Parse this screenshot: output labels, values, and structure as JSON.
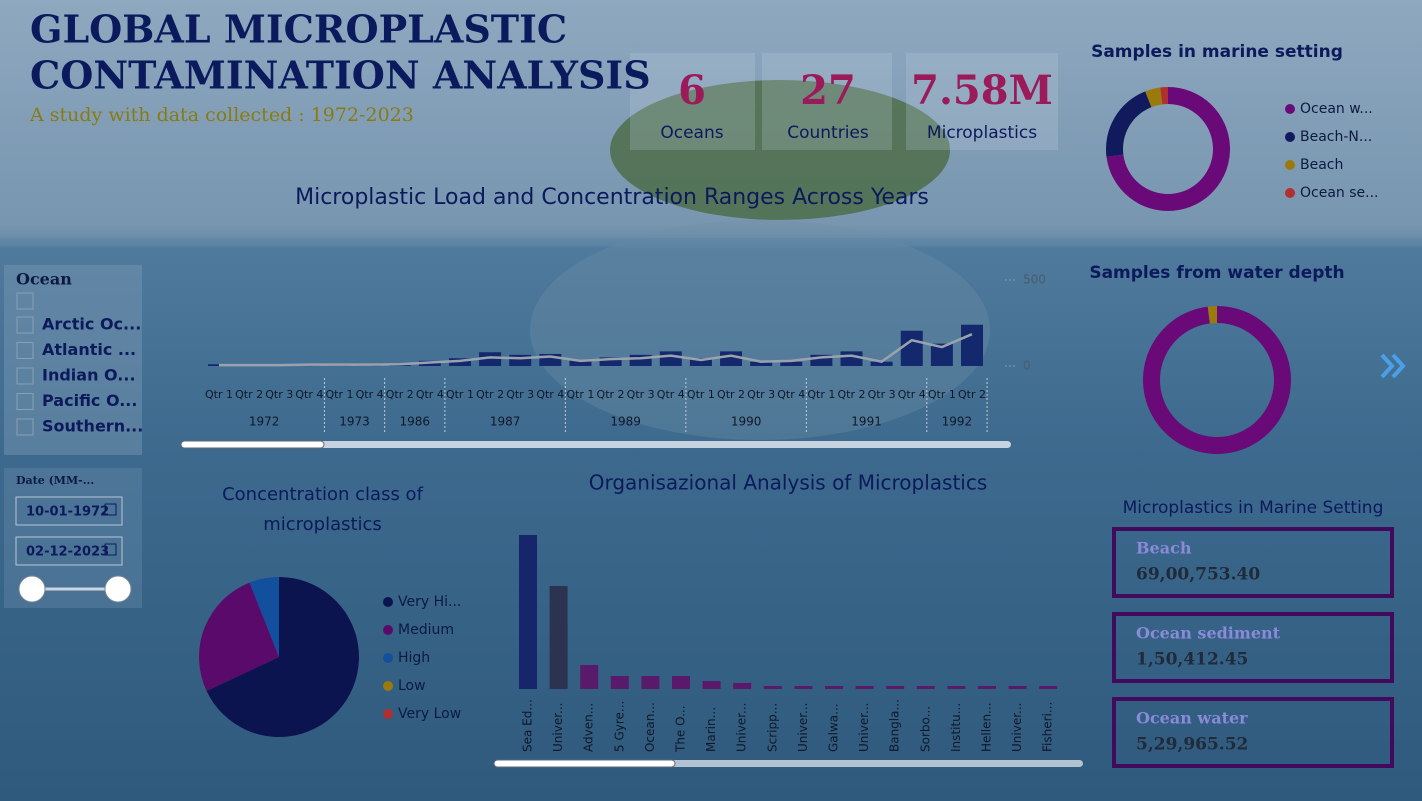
{
  "header": {
    "title_line1": "GLOBAL MICROPLASTIC",
    "title_line2": "CONTAMINATION ANALYSIS",
    "subtitle": "A study with data collected : 1972-2023"
  },
  "kpis": [
    {
      "value": "6",
      "label": "Oceans"
    },
    {
      "value": "27",
      "label": "Countries"
    },
    {
      "value": "7.58M",
      "label": "Microplastics"
    }
  ],
  "slicer": {
    "title": "Ocean",
    "items": [
      "Arctic Oc...",
      "Atlantic ...",
      "Indian O...",
      "Pacific O...",
      "Southern..."
    ]
  },
  "date_filter": {
    "title": "Date (MM-...",
    "start": "10-01-1972",
    "end": "02-12-2023"
  },
  "cards": {
    "title": "Microplastics in Marine Setting",
    "items": [
      {
        "label": "Beach",
        "value": "69,00,753.40"
      },
      {
        "label": "Ocean sediment",
        "value": "1,50,412.45"
      },
      {
        "label": "Ocean water",
        "value": "5,29,965.52"
      }
    ]
  },
  "chart_data": [
    {
      "type": "combo",
      "title": "Microplastic Load and Concentration Ranges Across Years",
      "categories": [
        "Qtr 1",
        "Qtr 2",
        "Qtr 3",
        "Qtr 4",
        "Qtr 1",
        "Qtr 4",
        "Qtr 2",
        "Qtr 4",
        "Qtr 1",
        "Qtr 2",
        "Qtr 3",
        "Qtr 4",
        "Qtr 1",
        "Qtr 2",
        "Qtr 3",
        "Qtr 4",
        "Qtr 1",
        "Qtr 2",
        "Qtr 3",
        "Qtr 4",
        "Qtr 1",
        "Qtr 2",
        "Qtr 3",
        "Qtr 4",
        "Qtr 1",
        "Qtr 2"
      ],
      "groups": [
        {
          "label": "1972",
          "size": 4
        },
        {
          "label": "1973",
          "size": 2
        },
        {
          "label": "1986",
          "size": 2
        },
        {
          "label": "1987",
          "size": 4
        },
        {
          "label": "1989",
          "size": 4
        },
        {
          "label": "1990",
          "size": 4
        },
        {
          "label": "1991",
          "size": 4
        },
        {
          "label": "1992",
          "size": 2
        }
      ],
      "series": [
        {
          "type": "bar",
          "color": "#14286e",
          "values": [
            10,
            3,
            3,
            3,
            3,
            3,
            5,
            30,
            45,
            80,
            65,
            70,
            35,
            50,
            65,
            85,
            45,
            85,
            25,
            25,
            65,
            85,
            25,
            205,
            130,
            240
          ]
        },
        {
          "type": "line",
          "color": "#9aa3ad",
          "values": [
            5,
            5,
            5,
            8,
            8,
            8,
            10,
            20,
            30,
            50,
            45,
            55,
            30,
            40,
            45,
            60,
            35,
            60,
            25,
            30,
            50,
            60,
            25,
            150,
            110,
            185
          ]
        }
      ],
      "ylim": [
        0,
        500
      ],
      "yticks": [
        0,
        500
      ]
    },
    {
      "type": "donut",
      "title": "Samples in marine setting",
      "categories": [
        "Ocean w...",
        "Beach-N...",
        "Beach",
        "Ocean se..."
      ],
      "values": [
        73,
        21,
        4,
        2
      ],
      "colors": [
        "#6a0a78",
        "#101a5c",
        "#9a7a0a",
        "#b03030"
      ]
    },
    {
      "type": "donut",
      "title": "Samples from water depth",
      "values": [
        98,
        2
      ],
      "colors": [
        "#6a0a78",
        "#9a7a0a"
      ]
    },
    {
      "type": "pie",
      "title": "Concentration class of microplastics",
      "categories": [
        "Very Hi...",
        "Medium",
        "High",
        "Low",
        "Very Low"
      ],
      "values": [
        68,
        26,
        6,
        0,
        0
      ],
      "colors": [
        "#0c1450",
        "#5a0a6a",
        "#124f9c",
        "#9a7a0a",
        "#b03030"
      ]
    },
    {
      "type": "bar",
      "title": "Organisazional Analysis of Microplastics",
      "categories": [
        "Sea Ed...",
        "Univer...",
        "Adven...",
        "5 Gyre...",
        "Ocean...",
        "The O...",
        "Marin...",
        "Univer...",
        "Scripp...",
        "Univer...",
        "Galwa...",
        "Univer...",
        "Bangla...",
        "Sorbo...",
        "Institu...",
        "Hellen...",
        "Univer...",
        "Fisheri..."
      ],
      "values": [
        154,
        103,
        24,
        13,
        13,
        13,
        8,
        6,
        3,
        3,
        3,
        3,
        3,
        3,
        3,
        3,
        3,
        3
      ],
      "colors": [
        "#17266a",
        "#2b3350",
        "#5a1a6b",
        "#5a1a6b",
        "#5a1a6b",
        "#5a1a6b",
        "#5a1a6b",
        "#5a1a6b",
        "#5a1a6b",
        "#5a1a6b",
        "#5a1a6b",
        "#5a1a6b",
        "#5a1a6b",
        "#5a1a6b",
        "#5a1a6b",
        "#5a1a6b",
        "#5a1a6b",
        "#5a1a6b"
      ]
    }
  ]
}
